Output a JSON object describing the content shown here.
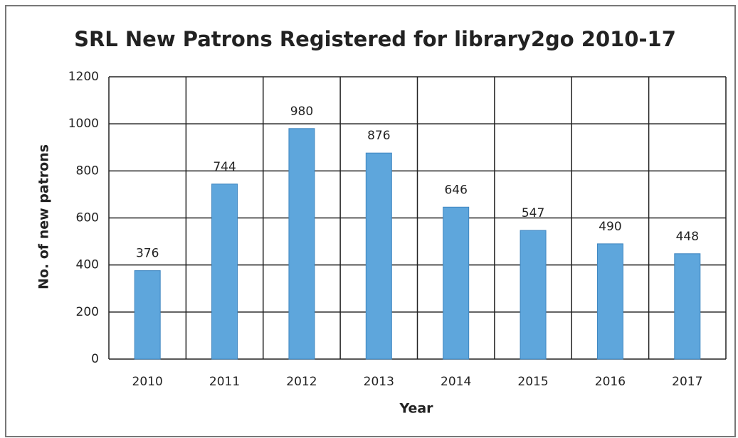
{
  "chart_data": {
    "type": "bar",
    "title": "SRL New Patrons Registered for library2go 2010-17",
    "x_label": "Year",
    "y_label": "No. of new patrons",
    "categories": [
      "2010",
      "2011",
      "2012",
      "2013",
      "2014",
      "2015",
      "2016",
      "2017"
    ],
    "values": [
      376,
      744,
      980,
      876,
      646,
      547,
      490,
      448
    ],
    "color": "#5ea6dc",
    "ylim": [
      0,
      1200
    ],
    "yticks": [
      0,
      200,
      400,
      600,
      800,
      1000,
      1200
    ],
    "grid": true
  }
}
